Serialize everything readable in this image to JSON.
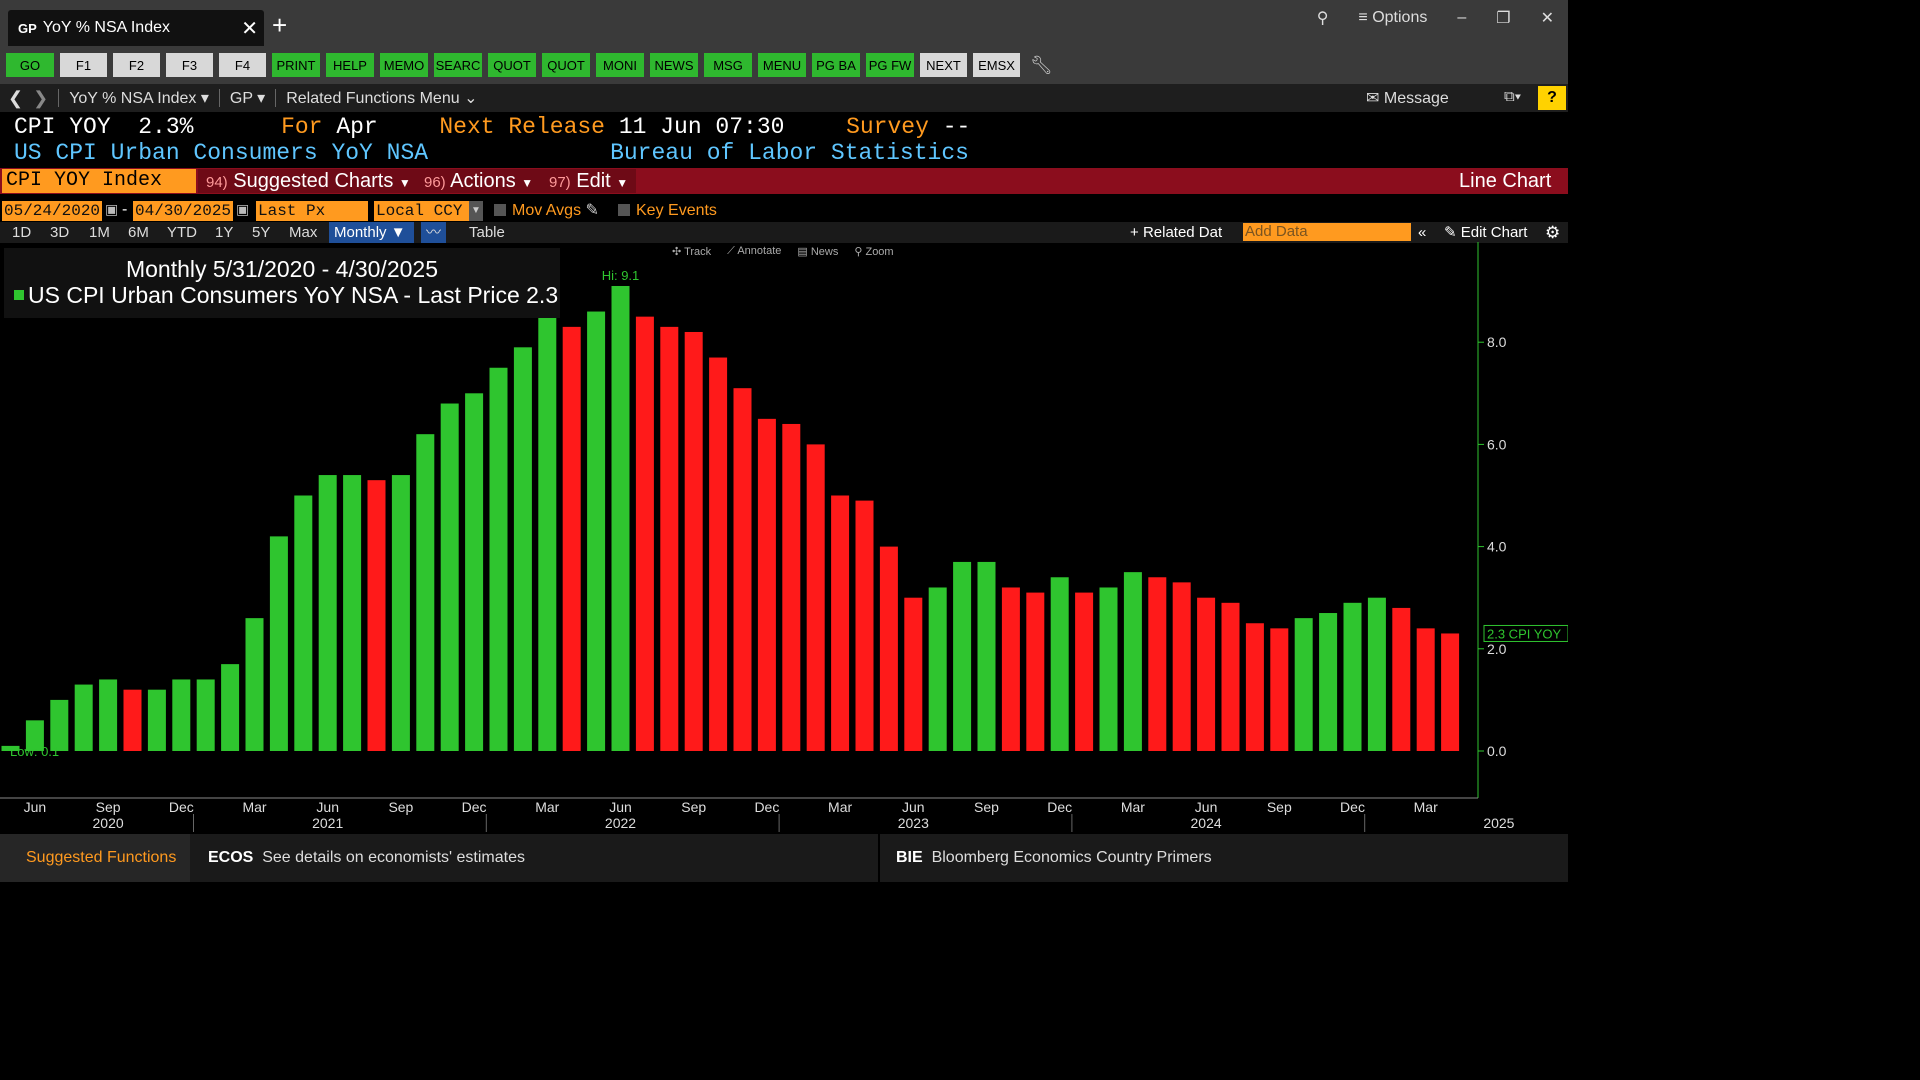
{
  "window": {
    "tab_code": "GP",
    "tab_title": "YoY % NSA Index",
    "options_label": "≡ Options"
  },
  "fkeys": [
    "GO",
    "F1",
    "F2",
    "F3",
    "F4",
    "PRINT",
    "HELP",
    "MEMO",
    "SEARC",
    "QUOT",
    "QUOT",
    "MONI",
    "NEWS",
    "MSG",
    "MENU",
    "PG BA",
    "PG FW",
    "NEXT",
    "EMSX"
  ],
  "nav": {
    "security": "YoY % NSA Index",
    "function": "GP",
    "related": "Related Functions Menu",
    "message": "Message",
    "help": "?"
  },
  "header": {
    "ticker": "CPI YOY",
    "value": "2.3%",
    "for_label": "For",
    "for_value": "Apr",
    "next_label": "Next Release",
    "next_value": "11 Jun 07:30",
    "survey_label": "Survey",
    "survey_value": "--",
    "name": "US CPI Urban Consumers YoY NSA",
    "source": "Bureau of Labor Statistics"
  },
  "menubar": {
    "index": "CPI YOY Index",
    "items": [
      {
        "num": "94)",
        "label": "Suggested Charts"
      },
      {
        "num": "96)",
        "label": "Actions"
      },
      {
        "num": "97)",
        "label": "Edit"
      }
    ],
    "chart_type": "Line Chart"
  },
  "controls": {
    "start_date": "05/24/2020",
    "end_date": "04/30/2025",
    "field": "Last Px",
    "currency": "Local CCY",
    "mov_avgs": "Mov Avgs",
    "key_events": "Key Events"
  },
  "periods": [
    "1D",
    "3D",
    "1M",
    "6M",
    "YTD",
    "1Y",
    "5Y",
    "Max"
  ],
  "period_selected": "Monthly",
  "table_label": "Table",
  "related_data": "Related Dat",
  "add_data_placeholder": "Add Data",
  "edit_chart": "Edit Chart",
  "tools": [
    "Track",
    "Annotate",
    "News",
    "Zoom"
  ],
  "legend": {
    "title": "Monthly 5/31/2020 - 4/30/2025",
    "series": "US CPI Urban Consumers YoY NSA - Last Price",
    "last": "2.3"
  },
  "annotations": {
    "hi": "Hi: 9.1",
    "low": "Low: 0.1",
    "last_tag": "2.3 CPI YOY"
  },
  "colors": {
    "up": "#2fc52f",
    "down": "#ff1a1a",
    "axis": "#2fc52f"
  },
  "chart_data": {
    "type": "bar",
    "ylim": [
      0,
      9.5
    ],
    "y_ticks": [
      "0.0",
      "2.0",
      "4.0",
      "6.0",
      "8.0"
    ],
    "x_month_labels": [
      "Jun",
      "Sep",
      "Dec",
      "Mar",
      "Jun",
      "Sep",
      "Dec",
      "Mar",
      "Jun",
      "Sep",
      "Dec",
      "Mar",
      "Jun",
      "Sep",
      "Dec",
      "Mar",
      "Jun",
      "Sep",
      "Dec",
      "Mar"
    ],
    "x_year_labels": [
      "2020",
      "2021",
      "2022",
      "2023",
      "2024",
      "2025"
    ],
    "series": [
      {
        "x": [
          "2020-05",
          "2020-06",
          "2020-07",
          "2020-08",
          "2020-09",
          "2020-10",
          "2020-11",
          "2020-12",
          "2021-01",
          "2021-02",
          "2021-03",
          "2021-04",
          "2021-05",
          "2021-06",
          "2021-07",
          "2021-08",
          "2021-09",
          "2021-10",
          "2021-11",
          "2021-12",
          "2022-01",
          "2022-02",
          "2022-03",
          "2022-04",
          "2022-05",
          "2022-06",
          "2022-07",
          "2022-08",
          "2022-09",
          "2022-10",
          "2022-11",
          "2022-12",
          "2023-01",
          "2023-02",
          "2023-03",
          "2023-04",
          "2023-05",
          "2023-06",
          "2023-07",
          "2023-08",
          "2023-09",
          "2023-10",
          "2023-11",
          "2023-12",
          "2024-01",
          "2024-02",
          "2024-03",
          "2024-04",
          "2024-05",
          "2024-06",
          "2024-07",
          "2024-08",
          "2024-09",
          "2024-10",
          "2024-11",
          "2024-12",
          "2025-01",
          "2025-02",
          "2025-03",
          "2025-04"
        ],
        "values": [
          0.1,
          0.6,
          1.0,
          1.3,
          1.4,
          1.2,
          1.2,
          1.4,
          1.4,
          1.7,
          2.6,
          4.2,
          5.0,
          5.4,
          5.4,
          5.3,
          5.4,
          6.2,
          6.8,
          7.0,
          7.5,
          7.9,
          8.5,
          8.3,
          8.6,
          9.1,
          8.5,
          8.3,
          8.2,
          7.7,
          7.1,
          6.5,
          6.4,
          6.0,
          5.0,
          4.9,
          4.0,
          3.0,
          3.2,
          3.7,
          3.7,
          3.2,
          3.1,
          3.4,
          3.1,
          3.2,
          3.5,
          3.4,
          3.3,
          3.0,
          2.9,
          2.5,
          2.4,
          2.6,
          2.7,
          2.9,
          3.0,
          2.8,
          2.4,
          2.3
        ]
      }
    ]
  },
  "bottom": {
    "suggested": "Suggested Functions",
    "ecos_code": "ECOS",
    "ecos_text": "See details on economists' estimates",
    "bie_code": "BIE",
    "bie_text": "Bloomberg Economics Country Primers"
  }
}
